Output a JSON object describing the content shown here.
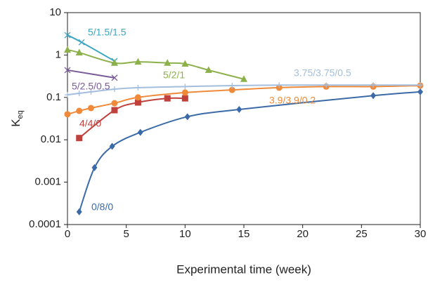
{
  "chart_data": {
    "type": "line",
    "x_label": "Experimental time (week)",
    "y_label": {
      "main": "K",
      "sub": "eq"
    },
    "xlim": [
      0,
      30
    ],
    "xticks": [
      0,
      5,
      10,
      15,
      20,
      25,
      30
    ],
    "ylim": [
      0.0001,
      10
    ],
    "yticks": [
      10,
      1,
      0.1,
      0.01,
      0.001,
      0.0001
    ],
    "y_scale": "log",
    "grid": false,
    "series": [
      {
        "name": "0/8/0",
        "color": "#3b6aa7",
        "marker": "diamond",
        "x": [
          1,
          2.3,
          3.8,
          6.2,
          10.2,
          14.6,
          26,
          30
        ],
        "values": [
          0.0002,
          0.0022,
          0.007,
          0.015,
          0.035,
          0.052,
          0.11,
          0.135
        ]
      },
      {
        "name": "4/4/0",
        "color": "#c0413c",
        "marker": "square",
        "x": [
          1,
          4,
          6,
          8.5,
          10
        ],
        "values": [
          0.011,
          0.05,
          0.076,
          0.095,
          0.095
        ]
      },
      {
        "name": "3.9/3.9/0.2",
        "color": "#ee8a3a",
        "marker": "circle",
        "x": [
          0,
          1,
          2,
          4,
          6,
          10,
          14,
          18,
          22,
          26,
          30
        ],
        "values": [
          0.04,
          0.048,
          0.056,
          0.073,
          0.1,
          0.13,
          0.15,
          0.17,
          0.18,
          0.18,
          0.19
        ]
      },
      {
        "name": "3.75/3.75/0.5",
        "color": "#a4bedd",
        "marker": "plus",
        "x": [
          0,
          1,
          2,
          4,
          6,
          10,
          14,
          18,
          22,
          26,
          30
        ],
        "values": [
          0.115,
          0.125,
          0.135,
          0.157,
          0.17,
          0.18,
          0.19,
          0.195,
          0.195,
          0.195,
          0.195
        ]
      },
      {
        "name": "5/2.5/0.5",
        "color": "#7a5b9a",
        "marker": "x",
        "x": [
          0,
          4
        ],
        "values": [
          0.44,
          0.29
        ]
      },
      {
        "name": "5/1.5/1.5",
        "color": "#3ea6c2",
        "marker": "x",
        "x": [
          0,
          1.2,
          4
        ],
        "values": [
          2.95,
          2,
          0.72
        ]
      },
      {
        "name": "5/2/1",
        "color": "#8cb04a",
        "marker": "triangle",
        "x": [
          0,
          1,
          4,
          6,
          8.5,
          10,
          12,
          15
        ],
        "values": [
          1.32,
          1.14,
          0.65,
          0.69,
          0.65,
          0.62,
          0.44,
          0.27
        ]
      }
    ]
  }
}
